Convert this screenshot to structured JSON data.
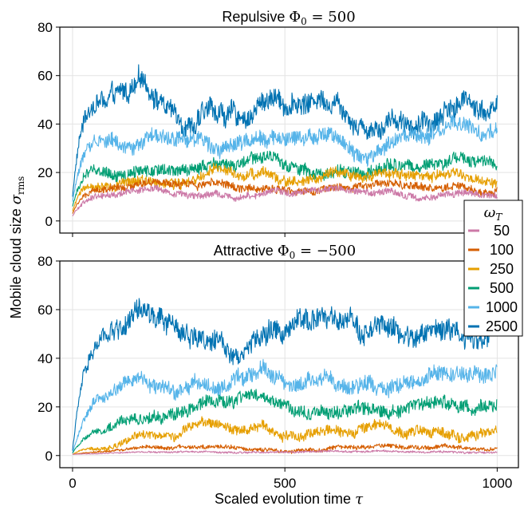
{
  "chart_data": [
    {
      "type": "line",
      "title_prefix": "Repulsive ",
      "title_math": "Φ",
      "title_sub": "0",
      "title_suffix": " = 500",
      "ylim": [
        -5,
        80
      ],
      "xlim": [
        -30,
        1050
      ],
      "yticks": [
        0,
        20,
        40,
        60,
        80
      ],
      "xticks": [
        0,
        500,
        1000
      ],
      "show_x_tick_labels": false,
      "grid": true,
      "series": [
        {
          "name": "50",
          "color": "#CC79A7",
          "start": 2,
          "mean": 11,
          "amp": 1.2,
          "noise": 1.3,
          "rise": 25
        },
        {
          "name": "100",
          "color": "#D55E00",
          "start": 3,
          "mean": 14,
          "amp": 1.5,
          "noise": 1.6,
          "rise": 25
        },
        {
          "name": "250",
          "color": "#E69F00",
          "start": 4,
          "mean": 17,
          "amp": 2.5,
          "noise": 2.0,
          "rise": 25
        },
        {
          "name": "500",
          "color": "#009E73",
          "start": 6,
          "mean": 22,
          "amp": 2.5,
          "noise": 2.4,
          "rise": 25
        },
        {
          "name": "1000",
          "color": "#56B4E9",
          "start": 8,
          "mean": 33,
          "amp": 3.5,
          "noise": 3.0,
          "rise": 25
        },
        {
          "name": "2500",
          "color": "#0072B2",
          "start": 10,
          "mean": 48,
          "amp": 6.0,
          "noise": 4.0,
          "rise": 20
        }
      ]
    },
    {
      "type": "line",
      "title_prefix": "Attractive ",
      "title_math": "Φ",
      "title_sub": "0",
      "title_suffix": " = −500",
      "ylim": [
        -5,
        80
      ],
      "xlim": [
        -30,
        1050
      ],
      "yticks": [
        0,
        20,
        40,
        60,
        80
      ],
      "xticks": [
        0,
        500,
        1000
      ],
      "show_x_tick_labels": true,
      "grid": true,
      "series": [
        {
          "name": "50",
          "color": "#CC79A7",
          "start": 0.5,
          "mean": 1.5,
          "amp": 0.3,
          "noise": 0.4,
          "rise": 150
        },
        {
          "name": "100",
          "color": "#D55E00",
          "start": 0.5,
          "mean": 3,
          "amp": 0.8,
          "noise": 0.8,
          "rise": 120
        },
        {
          "name": "250",
          "color": "#E69F00",
          "start": 0.5,
          "mean": 10,
          "amp": 2.5,
          "noise": 2.0,
          "rise": 120
        },
        {
          "name": "500",
          "color": "#009E73",
          "start": 1,
          "mean": 20,
          "amp": 3.0,
          "noise": 2.6,
          "rise": 80
        },
        {
          "name": "1000",
          "color": "#56B4E9",
          "start": 1,
          "mean": 30,
          "amp": 3.5,
          "noise": 3.0,
          "rise": 50
        },
        {
          "name": "2500",
          "color": "#0072B2",
          "start": 2,
          "mean": 50,
          "amp": 6.0,
          "noise": 4.0,
          "rise": 30
        }
      ]
    }
  ],
  "axes": {
    "xlabel_text": "Scaled evolution time ",
    "xlabel_math": "τ",
    "ylabel_text": "Mobile cloud size ",
    "ylabel_math": "σ",
    "ylabel_sub": "rms"
  },
  "legend": {
    "title_math": "ω",
    "title_sub": "T",
    "placement": "right, between panels",
    "entries": [
      {
        "label": "50",
        "color": "#CC79A7"
      },
      {
        "label": "100",
        "color": "#D55E00"
      },
      {
        "label": "250",
        "color": "#E69F00"
      },
      {
        "label": "500",
        "color": "#009E73"
      },
      {
        "label": "1000",
        "color": "#56B4E9"
      },
      {
        "label": "2500",
        "color": "#0072B2"
      }
    ]
  }
}
